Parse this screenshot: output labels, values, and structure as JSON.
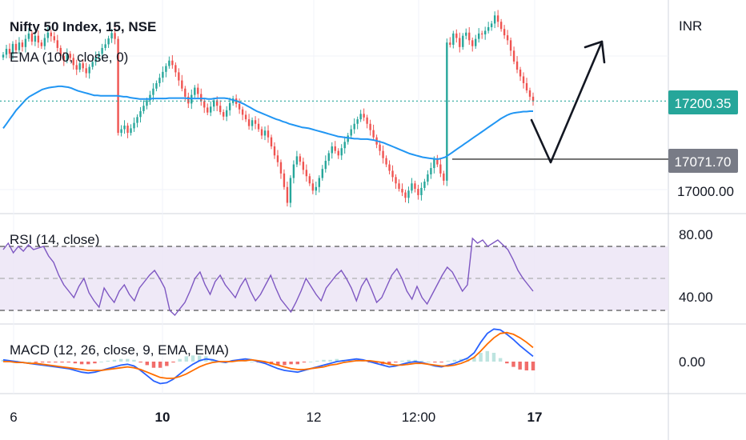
{
  "header": {
    "title": "Nifty 50 Index, 15, NSE",
    "ema_label": "EMA (100, close, 0)",
    "currency": "INR"
  },
  "colors": {
    "up": "#26a69a",
    "down": "#ef5350",
    "ema": "#2196f3",
    "rsi": "#7e57c2",
    "rsi_band": "#ede7f6",
    "macd": "#2962ff",
    "signal": "#ff6d00",
    "hist_pos": "#b2dfdb",
    "hist_neg": "#ef5350",
    "current_price_badge": "#26a69a",
    "level_badge": "#787b86",
    "drawing": "#131722"
  },
  "price_axis": {
    "labels": [
      "17000.00"
    ],
    "current_price": "17200.35",
    "level_price": "17071.70"
  },
  "x_axis": {
    "labels": [
      "6",
      "10",
      "12",
      "12:00",
      "17"
    ]
  },
  "rsi_panel": {
    "label": "RSI (14, close)",
    "axis_labels": [
      "80.00",
      "40.00"
    ],
    "levels": [
      30,
      50,
      70
    ]
  },
  "macd_panel": {
    "label": "MACD (12, 26, close, 9, EMA, EMA)",
    "axis_labels": [
      "0.00"
    ]
  },
  "chart_data": {
    "type": "candlestick",
    "symbol": "Nifty 50 Index",
    "interval": "15",
    "exchange": "NSE",
    "closes": [
      17303,
      17316,
      17305,
      17327,
      17313,
      17330,
      17320,
      17338,
      17350,
      17332,
      17345,
      17330,
      17322,
      17340,
      17352,
      17344,
      17335,
      17318,
      17300,
      17290,
      17305,
      17296,
      17280,
      17270,
      17284,
      17273,
      17262,
      17276,
      17287,
      17298,
      17305,
      17318,
      17326,
      17339,
      17351,
      17338,
      17130,
      17138,
      17146,
      17130,
      17140,
      17152,
      17165,
      17178,
      17190,
      17202,
      17214,
      17228,
      17240,
      17252,
      17265,
      17278,
      17290,
      17280,
      17264,
      17246,
      17228,
      17210,
      17195,
      17214,
      17230,
      17216,
      17200,
      17186,
      17175,
      17188,
      17202,
      17190,
      17176,
      17166,
      17180,
      17196,
      17206,
      17194,
      17182,
      17170,
      17160,
      17145,
      17158,
      17150,
      17138,
      17124,
      17135,
      17120,
      17100,
      17080,
      17065,
      17040,
      17010,
      16975,
      17030,
      17060,
      17078,
      17066,
      17048,
      17034,
      17018,
      17002,
      17010,
      17030,
      17050,
      17068,
      17085,
      17100,
      17090,
      17080,
      17096,
      17110,
      17124,
      17138,
      17150,
      17160,
      17172,
      17164,
      17150,
      17136,
      17120,
      17104,
      17090,
      17074,
      17060,
      17046,
      17032,
      17018,
      17006,
      16998,
      16986,
      17002,
      17018,
      17006,
      16992,
      17008,
      17022,
      17038,
      17052,
      17072,
      17060,
      17040,
      17024,
      17330,
      17325,
      17350,
      17340,
      17320,
      17345,
      17352,
      17335,
      17322,
      17338,
      17350,
      17348,
      17356,
      17364,
      17372,
      17390,
      17376,
      17360,
      17346,
      17335,
      17312,
      17288,
      17270,
      17255,
      17240,
      17224,
      17210,
      17200.35
    ],
    "ema_100": [
      17140,
      17150,
      17160,
      17170,
      17180,
      17188,
      17196,
      17204,
      17210,
      17214,
      17218,
      17222,
      17226,
      17228,
      17230,
      17231,
      17232,
      17233,
      17233,
      17232,
      17231,
      17229,
      17226,
      17223,
      17221,
      17219,
      17217,
      17215,
      17213,
      17213,
      17212,
      17212,
      17212,
      17212,
      17212,
      17212,
      17211,
      17210,
      17210,
      17208,
      17207,
      17206,
      17205,
      17205,
      17205,
      17205,
      17206,
      17206,
      17206,
      17206,
      17206,
      17207,
      17207,
      17207,
      17207,
      17207,
      17207,
      17206,
      17206,
      17206,
      17206,
      17206,
      17206,
      17205,
      17205,
      17206,
      17207,
      17207,
      17207,
      17206,
      17204,
      17202,
      17200,
      17197,
      17194,
      17190,
      17186,
      17182,
      17178,
      17175,
      17172,
      17169,
      17166,
      17163,
      17160,
      17158,
      17155,
      17153,
      17150,
      17148,
      17146,
      17144,
      17142,
      17141,
      17140,
      17138,
      17136,
      17134,
      17132,
      17130,
      17128,
      17126,
      17124,
      17122,
      17121,
      17120,
      17119,
      17118,
      17117,
      17117,
      17116,
      17116,
      17116,
      17115,
      17114,
      17112,
      17110,
      17108,
      17105,
      17102,
      17099,
      17096,
      17093,
      17090,
      17087,
      17084,
      17082,
      17080,
      17078,
      17076,
      17075,
      17074,
      17073,
      17072,
      17072,
      17074,
      17076,
      17081,
      17086,
      17091,
      17096,
      17101,
      17106,
      17111,
      17116,
      17121,
      17126,
      17131,
      17136,
      17141,
      17146,
      17151,
      17156,
      17161,
      17165,
      17169,
      17172,
      17174,
      17175,
      17176,
      17177,
      17177,
      17178,
      17178
    ],
    "current_price": 17200.35,
    "support_level": 17071.7,
    "y_axis_label": "INR",
    "rsi": [
      68,
      72,
      66,
      70,
      67,
      71,
      68,
      69,
      70,
      64,
      60,
      52,
      46,
      42,
      38,
      45,
      50,
      41,
      36,
      32,
      44,
      39,
      35,
      42,
      46,
      40,
      36,
      44,
      48,
      52,
      55,
      50,
      44,
      30,
      27,
      31,
      35,
      42,
      50,
      54,
      46,
      40,
      48,
      52,
      46,
      42,
      38,
      45,
      50,
      42,
      36,
      40,
      46,
      52,
      44,
      37,
      33,
      29,
      35,
      42,
      50,
      45,
      40,
      36,
      44,
      48,
      52,
      55,
      50,
      44,
      36,
      45,
      50,
      43,
      35,
      38,
      45,
      52,
      56,
      50,
      42,
      37,
      45,
      38,
      34,
      40,
      46,
      52,
      57,
      54,
      48,
      42,
      46,
      75,
      72,
      74,
      70,
      72,
      74,
      71,
      68,
      62,
      55,
      50,
      46,
      42
    ],
    "rsi_range": [
      20,
      88
    ],
    "macd": [
      2,
      1,
      0,
      -1,
      -2,
      -3,
      -4,
      -5,
      -6,
      -7,
      -8,
      -10,
      -12,
      -13,
      -12,
      -10,
      -8,
      -6,
      -4,
      -3,
      -5,
      -10,
      -16,
      -22,
      -25,
      -24,
      -20,
      -14,
      -8,
      -3,
      1,
      3,
      2,
      0,
      -1,
      1,
      2,
      3,
      2,
      0,
      -2,
      -5,
      -8,
      -10,
      -11,
      -12,
      -10,
      -8,
      -6,
      -4,
      -2,
      0,
      1,
      2,
      3,
      2,
      0,
      -2,
      -4,
      -6,
      -5,
      -3,
      -1,
      0,
      -1,
      -3,
      -5,
      -6,
      -4,
      -2,
      1,
      4,
      10,
      22,
      32,
      37,
      36,
      31,
      25,
      18,
      12,
      6
    ],
    "macd_signal": [
      0,
      0,
      -1,
      -1,
      -2,
      -2,
      -3,
      -4,
      -5,
      -6,
      -7,
      -8,
      -9,
      -10,
      -10,
      -10,
      -9,
      -8,
      -7,
      -6,
      -7,
      -9,
      -12,
      -15,
      -18,
      -19,
      -19,
      -17,
      -14,
      -10,
      -6,
      -3,
      -1,
      0,
      0,
      0,
      1,
      1,
      2,
      1,
      0,
      -2,
      -4,
      -6,
      -8,
      -9,
      -9,
      -8,
      -7,
      -6,
      -4,
      -3,
      -1,
      0,
      1,
      1,
      1,
      0,
      -1,
      -3,
      -4,
      -4,
      -3,
      -2,
      -2,
      -3,
      -4,
      -5,
      -5,
      -4,
      -2,
      1,
      5,
      12,
      20,
      27,
      32,
      33,
      31,
      27,
      22,
      16
    ],
    "macd_range": [
      -40,
      52
    ]
  }
}
